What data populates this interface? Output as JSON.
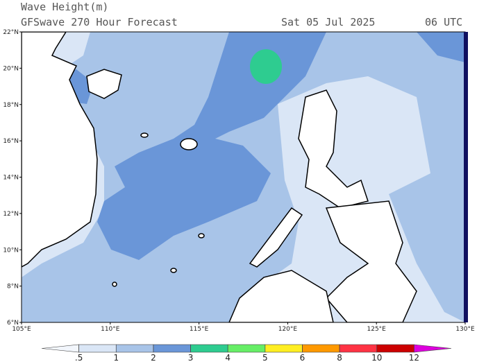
{
  "header": {
    "title": "Wave Height(m)",
    "subtitle": "GFSwave 270 Hour Forecast",
    "date": "Sat 05 Jul 2025",
    "time": "06 UTC"
  },
  "map": {
    "lon_range": [
      105,
      130
    ],
    "lat_range": [
      6,
      22
    ],
    "lat_ticks": [
      {
        "value": 22,
        "label": "22°N"
      },
      {
        "value": 20,
        "label": "20°N"
      },
      {
        "value": 18,
        "label": "18°N"
      },
      {
        "value": 16,
        "label": "16°N"
      },
      {
        "value": 14,
        "label": "14°N"
      },
      {
        "value": 12,
        "label": "12°N"
      },
      {
        "value": 10,
        "label": "10°N"
      },
      {
        "value": 8,
        "label": "8°N"
      },
      {
        "value": 6,
        "label": "6°N"
      }
    ],
    "lon_ticks": [
      {
        "value": 105,
        "label": "105°E"
      },
      {
        "value": 110,
        "label": "110°E"
      },
      {
        "value": 115,
        "label": "115°E"
      },
      {
        "value": 120,
        "label": "120°E"
      },
      {
        "value": 125,
        "label": "125°E"
      },
      {
        "value": 130,
        "label": "130°E"
      }
    ]
  },
  "colorbar": {
    "levels": [
      {
        "value": 0.5,
        "label": ".5"
      },
      1,
      2,
      3,
      4,
      5,
      6,
      8,
      10,
      12
    ],
    "colors": [
      "#f2f6fc",
      "#dae6f6",
      "#a8c4e8",
      "#6a96d8",
      "#2ecc90",
      "#66ee66",
      "#ffee22",
      "#ff9900",
      "#ff3344",
      "#cc0000",
      "#dd00dd"
    ]
  }
}
